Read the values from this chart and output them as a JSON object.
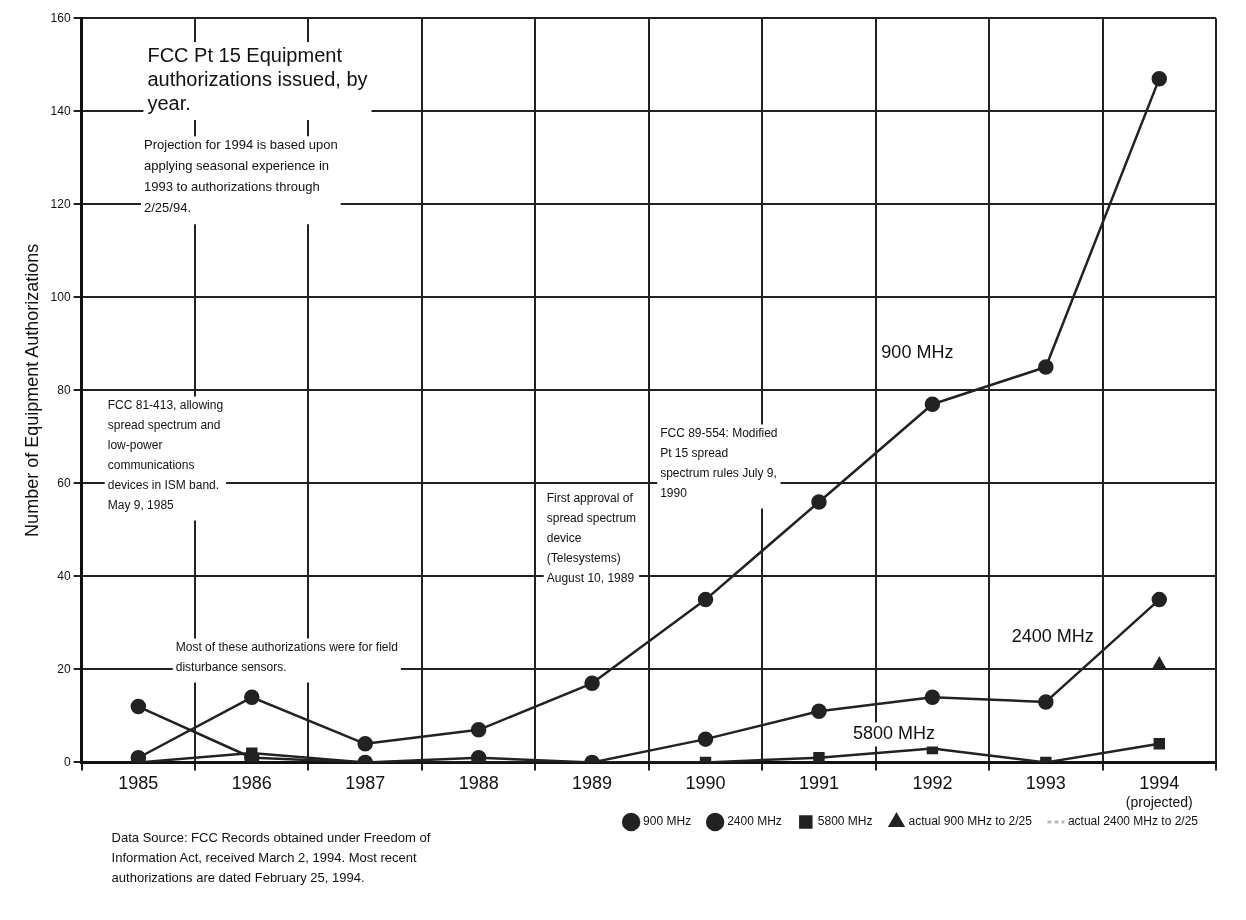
{
  "chart_data": {
    "type": "line",
    "title": "FCC Pt 15 Equipment authorizations issued, by year.",
    "ylabel": "Number of Equipment Authorizations",
    "categories": [
      "1985",
      "1986",
      "1987",
      "1988",
      "1989",
      "1990",
      "1991",
      "1992",
      "1993",
      "1994"
    ],
    "series": [
      {
        "name": "900 MHz",
        "color": "#222222",
        "marker": "circle",
        "values": [
          1,
          14,
          4,
          7,
          17,
          35,
          56,
          77,
          85,
          147
        ]
      },
      {
        "name": "2400 MHz",
        "color": "#222222",
        "marker": "circle",
        "values": [
          12,
          1,
          0,
          1,
          0,
          5,
          11,
          14,
          13,
          35
        ]
      },
      {
        "name": "5800 MHz",
        "color": "#222222",
        "marker": "square",
        "values": [
          0,
          2,
          0,
          0,
          0,
          0,
          1,
          3,
          0,
          4
        ]
      },
      {
        "name": "actual 900 MHz to 2/25",
        "color": "#222222",
        "marker": "triangle",
        "values": [
          null,
          null,
          null,
          null,
          null,
          null,
          null,
          null,
          null,
          21
        ]
      },
      {
        "name": "actual 2400 MHz to 2/25",
        "color": "#bbbbbb",
        "marker": "none",
        "line_style": "dashed",
        "values": [
          null,
          null,
          null,
          null,
          null,
          null,
          null,
          null,
          null,
          null
        ]
      }
    ],
    "ylim": [
      0,
      160
    ],
    "yticks": [
      0,
      20,
      40,
      60,
      80,
      100,
      120,
      140,
      160
    ],
    "grid": true,
    "legend": "bottom right",
    "annotations": [
      "Projection for 1994 is based upon applying seasonal experience in 1993 to authorizations through 2/25/94.",
      "FCC 81-413, allowing spread spectrum and low-power communications devices in ISM band. May 9, 1985",
      "Most of these authorizations were for field disturbance sensors.",
      "First approval of spread spectrum device (Telesystems) August 10, 1989",
      "FCC 89-554: Modified Pt 15 spread spectrum rules July 9, 1990",
      "(projected)",
      "Data Source: FCC Records obtained under Freedom of Information Act, received March 2, 1994. Most recent authorizations are dated February 25, 1994."
    ]
  }
}
